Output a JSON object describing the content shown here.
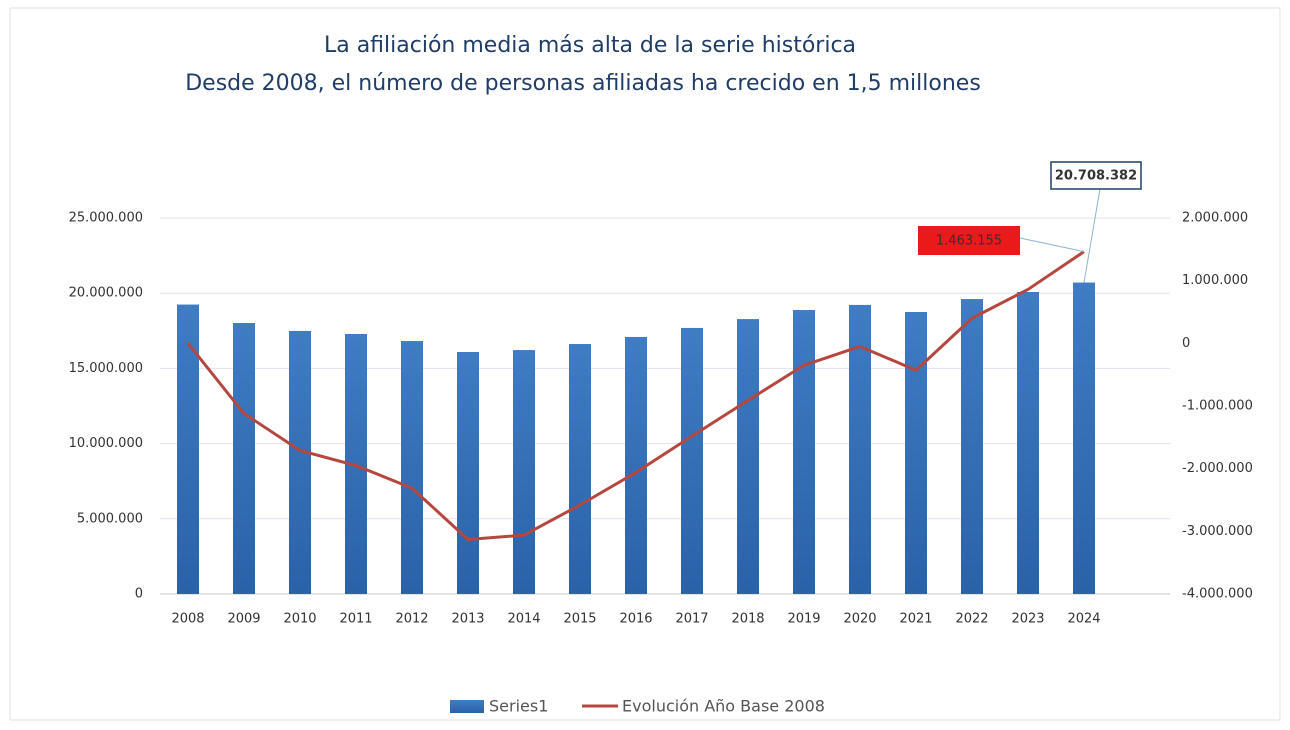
{
  "chart_data": {
    "type": "bar_line",
    "title": "La afiliación media más alta de la serie histórica",
    "subtitle": "Desde 2008, el número de personas afiliadas ha crecido en 1,5 millones",
    "categories": [
      "2008",
      "2009",
      "2010",
      "2011",
      "2012",
      "2013",
      "2014",
      "2015",
      "2016",
      "2017",
      "2018",
      "2019",
      "2020",
      "2021",
      "2022",
      "2023",
      "2024"
    ],
    "series": [
      {
        "name": "Series1",
        "color": "#3470b8",
        "type": "bar",
        "values": [
          19245227,
          18020000,
          17490000,
          17290000,
          16820000,
          16090000,
          16220000,
          16620000,
          17090000,
          17690000,
          18280000,
          18880000,
          19220000,
          18750000,
          19610000,
          20080000,
          20708382
        ],
        "value_labels": [
          null,
          null,
          null,
          null,
          null,
          null,
          null,
          null,
          null,
          null,
          null,
          null,
          null,
          null,
          null,
          null,
          "20.708.382"
        ]
      },
      {
        "name": "Evolución Año Base 2008",
        "color": "#b5473f",
        "type": "line",
        "axis": "y2",
        "values": [
          0,
          -1120000,
          -1710000,
          -1950000,
          -2310000,
          -3130000,
          -3060000,
          -2580000,
          -2060000,
          -1480000,
          -910000,
          -350000,
          -50000,
          -430000,
          400000,
          860000,
          1463155
        ],
        "value_labels": [
          null,
          null,
          null,
          null,
          null,
          null,
          null,
          null,
          null,
          null,
          null,
          null,
          null,
          null,
          null,
          null,
          "1.463.155"
        ]
      }
    ],
    "ylim": [
      0,
      25000000
    ],
    "yticks": [
      0,
      {
        "value": 5000000,
        "label": "5.000.000"
      },
      {
        "value": 10000000,
        "label": "10.000.000"
      },
      {
        "value": 15000000,
        "label": "15.000.000"
      },
      {
        "value": 20000000,
        "label": "20.000.000"
      },
      {
        "value": 25000000,
        "label": "25.000.000"
      }
    ],
    "y2lim": [
      -4000000,
      2000000
    ],
    "y2ticks": [
      {
        "value": -4000000,
        "label": "-4.000.000"
      },
      {
        "value": -3000000,
        "label": "-3.000.000"
      },
      {
        "value": -2000000,
        "label": "-2.000.000"
      },
      {
        "value": -1000000,
        "label": "-1.000.000"
      },
      0,
      {
        "value": 1000000,
        "label": "1.000.000"
      },
      {
        "value": 2000000,
        "label": "2.000.000"
      }
    ],
    "grid": true,
    "legend": "bottom"
  }
}
